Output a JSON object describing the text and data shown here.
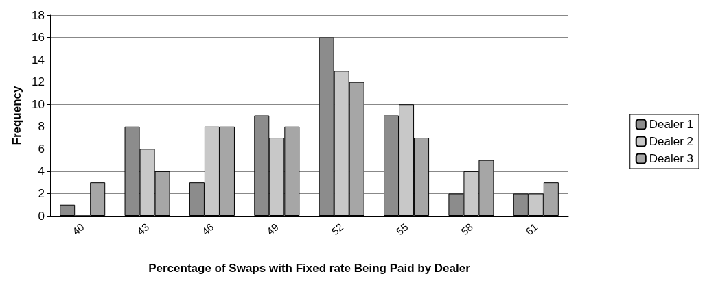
{
  "chart_data": {
    "type": "bar",
    "xlabel": "Percentage of Swaps with Fixed rate Being Paid by Dealer",
    "ylabel": "Frequency",
    "categories": [
      "40",
      "43",
      "46",
      "49",
      "52",
      "55",
      "58",
      "61"
    ],
    "series": [
      {
        "name": "Dealer 1",
        "color": "#8c8c8c",
        "values": [
          1,
          8,
          3,
          9,
          16,
          9,
          2,
          2
        ]
      },
      {
        "name": "Dealer 2",
        "color": "#c8c8c8",
        "values": [
          0,
          6,
          8,
          7,
          13,
          10,
          4,
          2
        ]
      },
      {
        "name": "Dealer 3",
        "color": "#a6a6a6",
        "values": [
          3,
          4,
          8,
          8,
          12,
          7,
          5,
          3
        ]
      }
    ],
    "ylim": [
      0,
      18
    ],
    "yticks": [
      0,
      2,
      4,
      6,
      8,
      10,
      12,
      14,
      16,
      18
    ],
    "grid": "y",
    "legend": "right"
  }
}
